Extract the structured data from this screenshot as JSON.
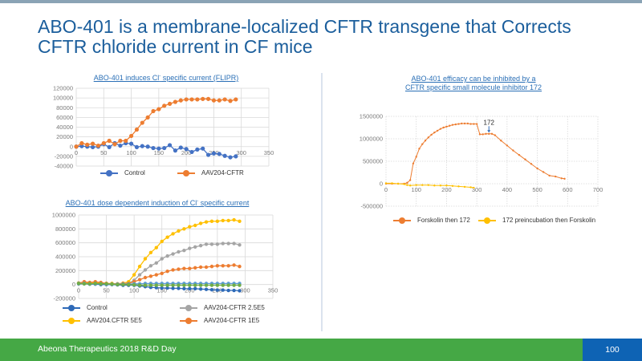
{
  "slide": {
    "title_line1": "ABO-401 is a membrane-localized CFTR transgene that Corrects",
    "title_line2": "CFTR chloride current in CF mice",
    "footer_text": "Abeona Therapeutics 2018 R&D Day",
    "page_number": "100",
    "colors": {
      "title": "#1b5e9c",
      "footer_green": "#45a845",
      "footer_blue": "#0e63b4",
      "chart_title": "#2a6fb6"
    }
  },
  "chart_data": [
    {
      "id": "flipr",
      "type": "line",
      "title": "ABO-401 induces Cl- specific current (FLIPR)",
      "title_main": "ABO-401 induces Cl",
      "title_sup": "-",
      "title_rest": " specific current (FLIPR)",
      "xlabel": "",
      "ylabel": "",
      "xlim": [
        0,
        350
      ],
      "ylim": [
        -40000,
        120000
      ],
      "xticks": [
        0,
        50,
        100,
        150,
        200,
        250,
        300,
        350
      ],
      "yticks": [
        -40000,
        -20000,
        0,
        20000,
        40000,
        60000,
        80000,
        100000,
        120000
      ],
      "xtick_labels": [
        "0",
        "50",
        "100",
        "150",
        "200",
        "250",
        "300",
        "350"
      ],
      "ytick_labels": [
        "-40000",
        "-20000",
        "0",
        "20000",
        "40000",
        "60000",
        "80000",
        "100000",
        "120000"
      ],
      "grid": true,
      "legend_position": "bottom",
      "x": [
        0,
        10,
        20,
        30,
        40,
        50,
        60,
        70,
        80,
        90,
        100,
        110,
        120,
        130,
        140,
        150,
        160,
        170,
        180,
        190,
        200,
        210,
        220,
        230,
        240,
        250,
        260,
        270,
        280,
        290
      ],
      "series": [
        {
          "name": "Control",
          "color": "#4472c4",
          "values": [
            0,
            1000,
            0,
            -1000,
            0,
            5000,
            -1000,
            7000,
            2000,
            7000,
            6000,
            -1000,
            1000,
            0,
            -3000,
            -4000,
            -3000,
            3000,
            -8000,
            -2000,
            -5000,
            -11000,
            -6000,
            -4000,
            -17000,
            -14000,
            -15000,
            -19000,
            -22000,
            -20000
          ]
        },
        {
          "name": "AAV204-CFTR",
          "color": "#ed7d31",
          "values": [
            0,
            7000,
            4000,
            6000,
            2000,
            7000,
            12000,
            5000,
            12000,
            12000,
            22000,
            35000,
            49000,
            60000,
            73000,
            77000,
            84000,
            88000,
            92000,
            95000,
            97000,
            97000,
            97000,
            98000,
            98000,
            95000,
            95000,
            97000,
            94000,
            97000
          ]
        }
      ]
    },
    {
      "id": "dose",
      "type": "line",
      "title": "ABO-401 dose dependent induction of Cl- specific current",
      "title_main": "ABO-401 dose dependent induction of Cl",
      "title_sup": "-",
      "title_rest": " specific current",
      "xlabel": "",
      "ylabel": "",
      "xlim": [
        0,
        350
      ],
      "ylim": [
        -200000,
        1000000
      ],
      "xticks": [
        0,
        50,
        100,
        150,
        200,
        250,
        300,
        350
      ],
      "yticks": [
        -200000,
        0,
        200000,
        400000,
        600000,
        800000,
        1000000
      ],
      "xtick_labels": [
        "0",
        "50",
        "100",
        "150",
        "200",
        "250",
        "300",
        "350"
      ],
      "ytick_labels": [
        "-200000",
        "0",
        "200000",
        "400000",
        "600000",
        "800000",
        "1000000"
      ],
      "grid": true,
      "legend_position": "bottom",
      "x": [
        0,
        10,
        20,
        30,
        40,
        50,
        60,
        70,
        80,
        90,
        100,
        110,
        120,
        130,
        140,
        150,
        160,
        170,
        180,
        190,
        200,
        210,
        220,
        230,
        240,
        250,
        260,
        270,
        280,
        290
      ],
      "series": [
        {
          "name": "Control",
          "color": "#2e6ab8",
          "values": [
            10000,
            10000,
            5000,
            5000,
            0,
            0,
            0,
            -5000,
            -10000,
            -10000,
            -10000,
            -20000,
            -30000,
            -40000,
            -45000,
            -50000,
            -50000,
            -55000,
            -55000,
            -60000,
            -60000,
            -60000,
            -65000,
            -70000,
            -75000,
            -80000,
            -80000,
            -85000,
            -85000,
            -90000
          ]
        },
        {
          "name": "AAV204-CFTR  2.5E5",
          "color": "#a5a5a5",
          "values": [
            20000,
            20000,
            15000,
            20000,
            15000,
            15000,
            10000,
            5000,
            10000,
            20000,
            60000,
            140000,
            210000,
            270000,
            310000,
            370000,
            410000,
            440000,
            470000,
            490000,
            520000,
            540000,
            560000,
            580000,
            580000,
            580000,
            590000,
            590000,
            590000,
            570000
          ]
        },
        {
          "name": "AAV204.CFTR  5E5",
          "color": "#ffc000",
          "values": [
            20000,
            30000,
            25000,
            30000,
            25000,
            15000,
            15000,
            10000,
            20000,
            40000,
            140000,
            260000,
            370000,
            460000,
            530000,
            620000,
            680000,
            730000,
            770000,
            800000,
            830000,
            850000,
            880000,
            900000,
            910000,
            910000,
            920000,
            920000,
            930000,
            910000
          ]
        },
        {
          "name": "AAV204-CFTR  1E5",
          "color": "#ed7d31",
          "values": [
            20000,
            40000,
            30000,
            40000,
            30000,
            15000,
            10000,
            10000,
            15000,
            15000,
            40000,
            70000,
            100000,
            120000,
            140000,
            160000,
            190000,
            210000,
            220000,
            230000,
            230000,
            240000,
            250000,
            250000,
            260000,
            270000,
            270000,
            270000,
            280000,
            260000
          ]
        },
        {
          "name": "",
          "color": "#5b9bd5",
          "legend": false,
          "values": [
            15000,
            15000,
            10000,
            10000,
            10000,
            5000,
            5000,
            5000,
            5000,
            5000,
            10000,
            10000,
            15000,
            15000,
            15000,
            15000,
            15000,
            15000,
            15000,
            15000,
            15000,
            15000,
            15000,
            15000,
            15000,
            15000,
            15000,
            15000,
            15000,
            15000
          ]
        },
        {
          "name": "",
          "color": "#70ad47",
          "legend": false,
          "values": [
            15000,
            10000,
            10000,
            15000,
            10000,
            10000,
            5000,
            0,
            0,
            0,
            -5000,
            -10000,
            -10000,
            -10000,
            -10000,
            -10000,
            -10000,
            -10000,
            -10000,
            -10000,
            -10000,
            -10000,
            -10000,
            -10000,
            -10000,
            -10000,
            -10000,
            -10000,
            -10000,
            -10000
          ]
        }
      ]
    },
    {
      "id": "inhibitor",
      "type": "line",
      "title": "ABO-401 efficacy can be inhibited by a CFTR specific small molecule inhibitor 172",
      "title_line1": "ABO-401 efficacy can be inhibited by a",
      "title_line2": "CFTR specific small molecule inhibitor 172",
      "xlabel": "",
      "ylabel": "",
      "xlim": [
        0,
        700
      ],
      "ylim": [
        -500000,
        1500000
      ],
      "xticks": [
        0,
        100,
        200,
        300,
        400,
        500,
        600,
        700
      ],
      "yticks": [
        -500000,
        0,
        500000,
        1000000,
        1500000
      ],
      "xtick_labels": [
        "0",
        "100",
        "200",
        "300",
        "400",
        "500",
        "600",
        "700"
      ],
      "ytick_labels": [
        "-500000",
        "0",
        "500000",
        "1000000",
        "1500000"
      ],
      "grid": true,
      "legend_position": "bottom",
      "annotation": {
        "text": "172",
        "x": 340,
        "y": 1120000
      },
      "series": [
        {
          "name": "Forskolin then 172",
          "color": "#ed7d31",
          "x": [
            0,
            20,
            40,
            60,
            70,
            80,
            90,
            100,
            110,
            120,
            130,
            140,
            150,
            160,
            170,
            180,
            190,
            200,
            210,
            220,
            230,
            240,
            250,
            260,
            270,
            280,
            290,
            300,
            310,
            320,
            330,
            340,
            350,
            360,
            380,
            400,
            420,
            440,
            460,
            480,
            500,
            520,
            540,
            560,
            580,
            590
          ],
          "values": [
            0,
            0,
            0,
            0,
            20000,
            80000,
            450000,
            600000,
            780000,
            880000,
            960000,
            1030000,
            1090000,
            1140000,
            1180000,
            1220000,
            1250000,
            1270000,
            1290000,
            1310000,
            1320000,
            1330000,
            1340000,
            1340000,
            1340000,
            1330000,
            1330000,
            1330000,
            1100000,
            1100000,
            1110000,
            1110000,
            1110000,
            1080000,
            960000,
            850000,
            740000,
            640000,
            540000,
            440000,
            340000,
            260000,
            180000,
            160000,
            120000,
            110000
          ]
        },
        {
          "name": "172 preincubation then Forskolin",
          "color": "#ffc000",
          "x": [
            0,
            20,
            40,
            60,
            70,
            80,
            100,
            120,
            140,
            160,
            180,
            200,
            220,
            240,
            260,
            280,
            290
          ],
          "values": [
            10000,
            10000,
            0,
            -10000,
            -30000,
            -40000,
            -30000,
            -30000,
            -30000,
            -40000,
            -40000,
            -40000,
            -50000,
            -60000,
            -70000,
            -80000,
            -90000
          ]
        }
      ]
    }
  ]
}
